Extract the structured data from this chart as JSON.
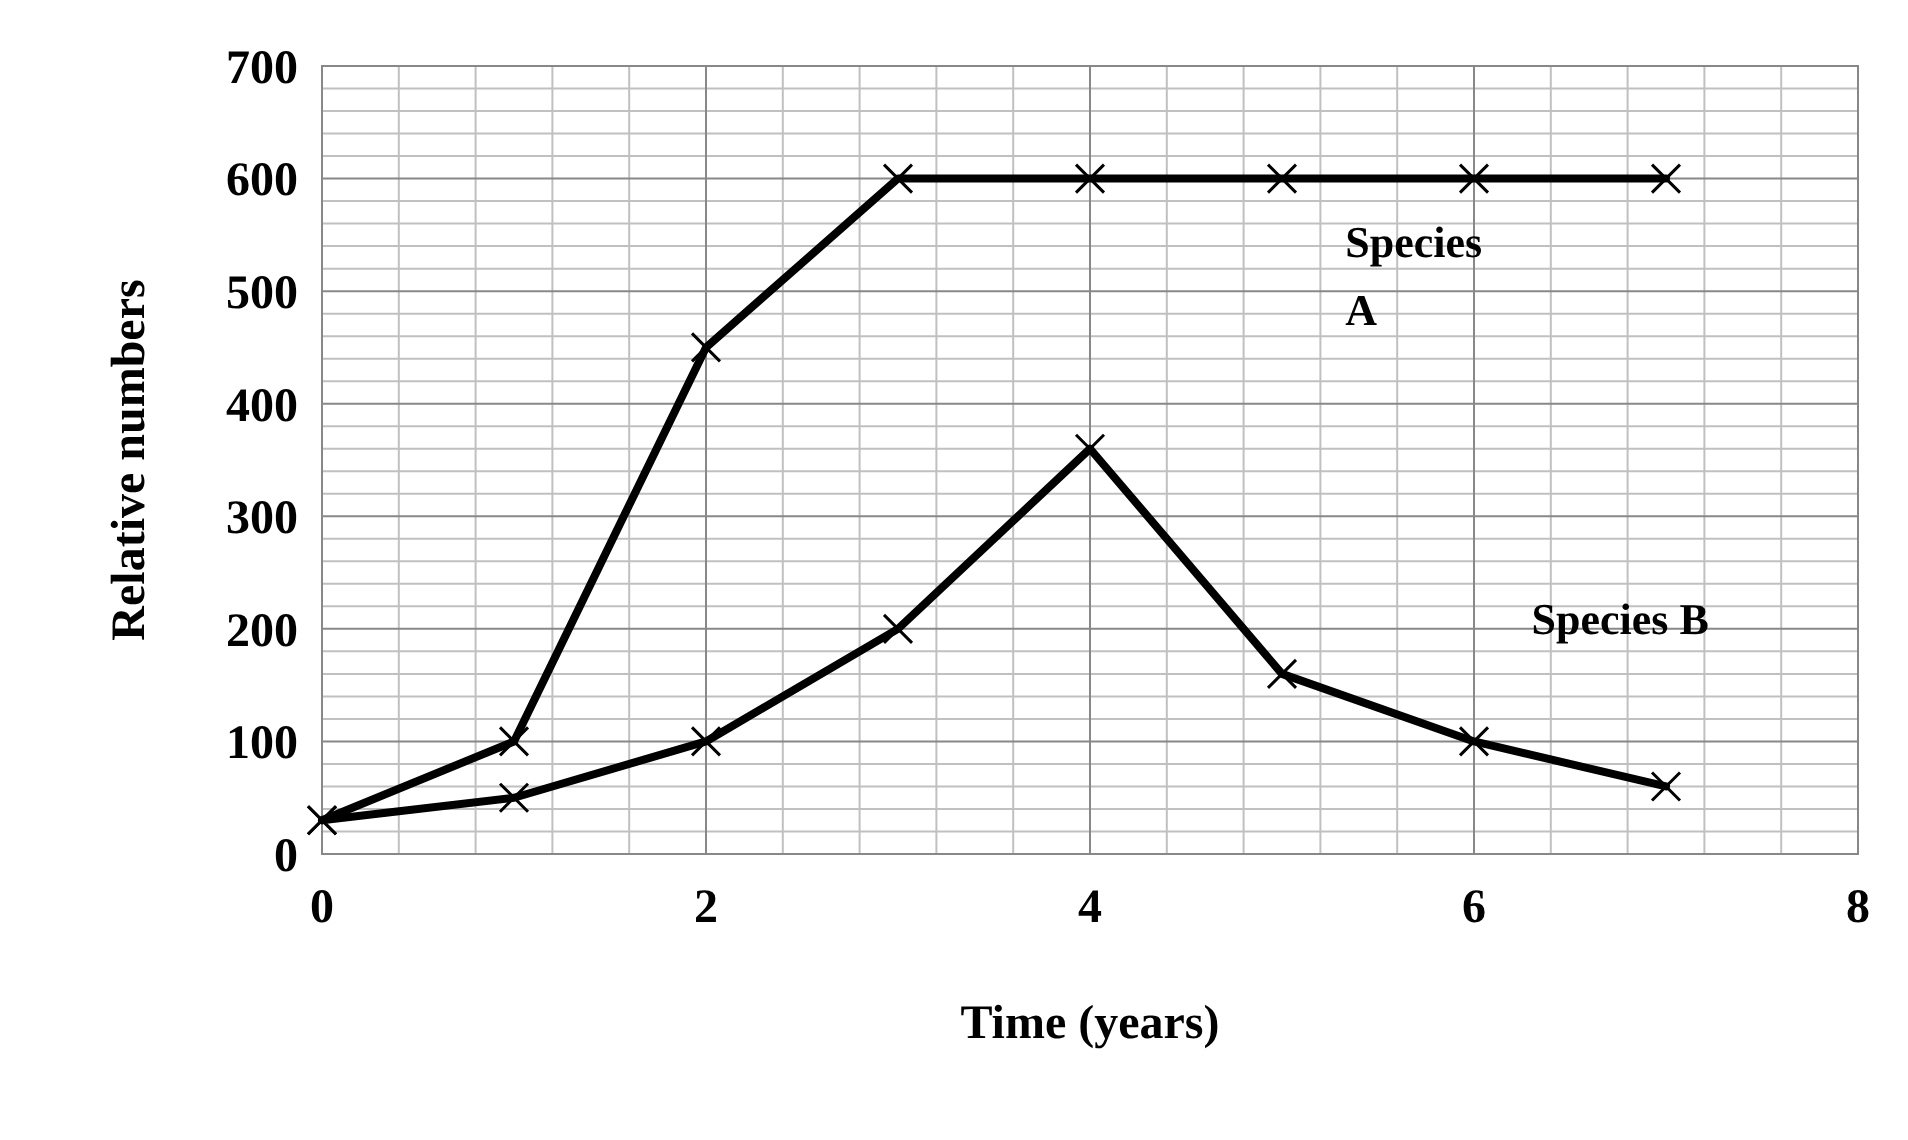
{
  "chart_data": {
    "type": "line",
    "xlabel": "Time (years)",
    "ylabel": "Relative numbers",
    "x": [
      0,
      1,
      2,
      3,
      4,
      5,
      6,
      7
    ],
    "series": [
      {
        "name": "Species A",
        "color": "#000000",
        "values": [
          30,
          100,
          450,
          600,
          600,
          600,
          600,
          600
        ]
      },
      {
        "name": "Species B",
        "color": "#000000",
        "values": [
          30,
          50,
          100,
          200,
          360,
          160,
          100,
          60
        ]
      }
    ],
    "xlim": [
      0,
      8
    ],
    "xticks": [
      0,
      2,
      4,
      6,
      8
    ],
    "ylim": [
      0,
      700
    ],
    "yticks": [
      0,
      100,
      200,
      300,
      400,
      500,
      600,
      700
    ],
    "grid": true,
    "marker": "cross",
    "line_style": "solid"
  }
}
